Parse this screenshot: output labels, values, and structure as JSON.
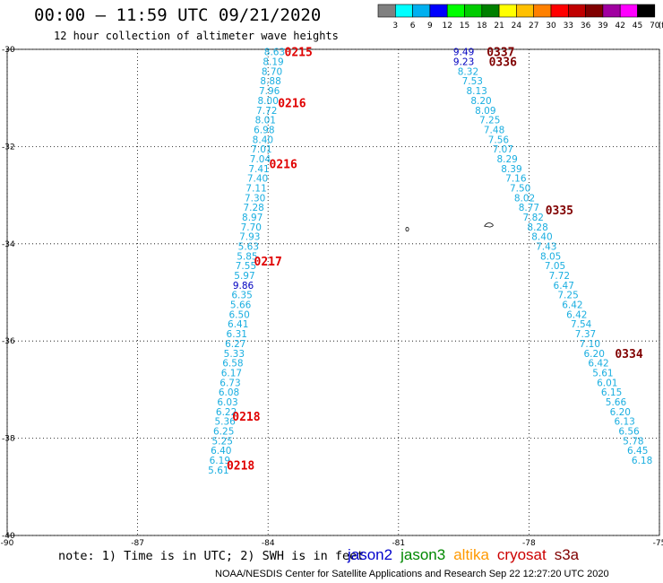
{
  "header": {
    "title": "00:00 – 11:59 UTC 09/21/2020",
    "subtitle": "12 hour collection of altimeter wave heights"
  },
  "colorbar": {
    "labels": [
      "3",
      "6",
      "9",
      "12",
      "15",
      "18",
      "21",
      "24",
      "27",
      "30",
      "33",
      "36",
      "39",
      "42",
      "45",
      "70"
    ],
    "colors": [
      "#808080",
      "#00ffff",
      "#00b0f0",
      "#0000ff",
      "#00ff00",
      "#00cc00",
      "#008000",
      "#ffff00",
      "#ffc000",
      "#ff8000",
      "#ff0000",
      "#c00000",
      "#800000",
      "#a000a0",
      "#ff00ff",
      "#000000"
    ],
    "unit": "(ft)"
  },
  "axes": {
    "lat_ticks": [
      -30,
      -32,
      -34,
      -36,
      -38,
      -40
    ],
    "lon_ticks": [
      -90,
      -87,
      -84,
      -81,
      -78,
      -75
    ],
    "lon_range": [
      -90,
      -75
    ],
    "lat_range": [
      -40,
      -30
    ]
  },
  "tracks": [
    {
      "points": [
        {
          "lat": -30.05,
          "lon": -83.85,
          "v": "8.63"
        },
        {
          "lat": -30.25,
          "lon": -83.88,
          "v": "8.19"
        },
        {
          "lat": -30.45,
          "lon": -83.91,
          "v": "8.70"
        },
        {
          "lat": -30.65,
          "lon": -83.94,
          "v": "8.88"
        },
        {
          "lat": -30.85,
          "lon": -83.97,
          "v": "7.96"
        },
        {
          "lat": -31.05,
          "lon": -84.0,
          "v": "8.00"
        },
        {
          "lat": -31.25,
          "lon": -84.03,
          "v": "7.72"
        },
        {
          "lat": -31.45,
          "lon": -84.06,
          "v": "8.01"
        },
        {
          "lat": -31.65,
          "lon": -84.09,
          "v": "6.98"
        },
        {
          "lat": -31.85,
          "lon": -84.12,
          "v": "8.40"
        },
        {
          "lat": -32.05,
          "lon": -84.15,
          "v": "7.01"
        },
        {
          "lat": -32.25,
          "lon": -84.18,
          "v": "7.04"
        },
        {
          "lat": -32.45,
          "lon": -84.21,
          "v": "7.41"
        },
        {
          "lat": -32.65,
          "lon": -84.24,
          "v": "7.40"
        },
        {
          "lat": -32.85,
          "lon": -84.27,
          "v": "7.11"
        },
        {
          "lat": -33.05,
          "lon": -84.3,
          "v": "7.30"
        },
        {
          "lat": -33.25,
          "lon": -84.33,
          "v": "7.28"
        },
        {
          "lat": -33.45,
          "lon": -84.36,
          "v": "8.97"
        },
        {
          "lat": -33.65,
          "lon": -84.39,
          "v": "7.70"
        },
        {
          "lat": -33.85,
          "lon": -84.42,
          "v": "7.93"
        },
        {
          "lat": -34.05,
          "lon": -84.45,
          "v": "5.63"
        },
        {
          "lat": -34.25,
          "lon": -84.48,
          "v": "5.85"
        },
        {
          "lat": -34.45,
          "lon": -84.51,
          "v": "7.55"
        },
        {
          "lat": -34.65,
          "lon": -84.54,
          "v": "5.97"
        },
        {
          "lat": -34.85,
          "lon": -84.57,
          "v": "9.86",
          "c": "#0000c0"
        },
        {
          "lat": -35.05,
          "lon": -84.6,
          "v": "6.35"
        },
        {
          "lat": -35.25,
          "lon": -84.63,
          "v": "5.66"
        },
        {
          "lat": -35.45,
          "lon": -84.66,
          "v": "6.50"
        },
        {
          "lat": -35.65,
          "lon": -84.69,
          "v": "6.41"
        },
        {
          "lat": -35.85,
          "lon": -84.72,
          "v": "6.31"
        },
        {
          "lat": -36.05,
          "lon": -84.75,
          "v": "6.27"
        },
        {
          "lat": -36.25,
          "lon": -84.78,
          "v": "5.33"
        },
        {
          "lat": -36.45,
          "lon": -84.81,
          "v": "6.58"
        },
        {
          "lat": -36.65,
          "lon": -84.84,
          "v": "6.17"
        },
        {
          "lat": -36.85,
          "lon": -84.87,
          "v": "6.73"
        },
        {
          "lat": -37.05,
          "lon": -84.9,
          "v": "6.08"
        },
        {
          "lat": -37.25,
          "lon": -84.93,
          "v": "6.03"
        },
        {
          "lat": -37.45,
          "lon": -84.96,
          "v": "6.22"
        },
        {
          "lat": -37.65,
          "lon": -84.99,
          "v": "5.36"
        },
        {
          "lat": -37.85,
          "lon": -85.02,
          "v": "6.25"
        },
        {
          "lat": -38.05,
          "lon": -85.05,
          "v": "5.25"
        },
        {
          "lat": -38.25,
          "lon": -85.08,
          "v": "6.40"
        },
        {
          "lat": -38.45,
          "lon": -85.11,
          "v": "6.19"
        },
        {
          "lat": -38.65,
          "lon": -85.14,
          "v": "5.61"
        }
      ],
      "time_labels": [
        {
          "lat": -30.05,
          "lon": -83.3,
          "t": "0215"
        },
        {
          "lat": -31.1,
          "lon": -83.45,
          "t": "0216"
        },
        {
          "lat": -32.35,
          "lon": -83.65,
          "t": "0216"
        },
        {
          "lat": -34.35,
          "lon": -84.0,
          "t": "0217"
        },
        {
          "lat": -37.55,
          "lon": -84.5,
          "t": "0218"
        },
        {
          "lat": -38.55,
          "lon": -84.63,
          "t": "0218"
        }
      ]
    },
    {
      "points": [
        {
          "lat": -30.05,
          "lon": -79.5,
          "v": "9.49",
          "c": "#0000c0"
        },
        {
          "lat": -30.25,
          "lon": -79.5,
          "v": "9.23",
          "c": "#0000c0"
        },
        {
          "lat": -30.45,
          "lon": -79.4,
          "v": "8.32"
        },
        {
          "lat": -30.65,
          "lon": -79.3,
          "v": "7.53"
        },
        {
          "lat": -30.85,
          "lon": -79.2,
          "v": "8.13"
        },
        {
          "lat": -31.05,
          "lon": -79.1,
          "v": "8.20"
        },
        {
          "lat": -31.25,
          "lon": -79.0,
          "v": "8.09"
        },
        {
          "lat": -31.45,
          "lon": -78.9,
          "v": "7.25"
        },
        {
          "lat": -31.65,
          "lon": -78.8,
          "v": "7.48"
        },
        {
          "lat": -31.85,
          "lon": -78.7,
          "v": "7.56"
        },
        {
          "lat": -32.05,
          "lon": -78.6,
          "v": "7.07"
        },
        {
          "lat": -32.25,
          "lon": -78.5,
          "v": "8.29"
        },
        {
          "lat": -32.45,
          "lon": -78.4,
          "v": "8.39"
        },
        {
          "lat": -32.65,
          "lon": -78.3,
          "v": "7.16"
        },
        {
          "lat": -32.85,
          "lon": -78.2,
          "v": "7.50"
        },
        {
          "lat": -33.05,
          "lon": -78.1,
          "v": "8.02"
        },
        {
          "lat": -33.25,
          "lon": -78.0,
          "v": "8.77"
        },
        {
          "lat": -33.45,
          "lon": -77.9,
          "v": "7.82"
        },
        {
          "lat": -33.65,
          "lon": -77.8,
          "v": "8.28"
        },
        {
          "lat": -33.85,
          "lon": -77.7,
          "v": "8.40"
        },
        {
          "lat": -34.05,
          "lon": -77.6,
          "v": "7.43"
        },
        {
          "lat": -34.25,
          "lon": -77.5,
          "v": "8.05"
        },
        {
          "lat": -34.45,
          "lon": -77.4,
          "v": "7.05"
        },
        {
          "lat": -34.65,
          "lon": -77.3,
          "v": "7.72"
        },
        {
          "lat": -34.85,
          "lon": -77.2,
          "v": "6.47"
        },
        {
          "lat": -35.05,
          "lon": -77.1,
          "v": "7.25"
        },
        {
          "lat": -35.25,
          "lon": -77.0,
          "v": "6.42"
        },
        {
          "lat": -35.45,
          "lon": -76.9,
          "v": "6.42"
        },
        {
          "lat": -35.65,
          "lon": -76.8,
          "v": "7.54"
        },
        {
          "lat": -35.85,
          "lon": -76.7,
          "v": "7.37"
        },
        {
          "lat": -36.05,
          "lon": -76.6,
          "v": "7.10"
        },
        {
          "lat": -36.25,
          "lon": -76.5,
          "v": "6.20"
        },
        {
          "lat": -36.45,
          "lon": -76.4,
          "v": "6.42"
        },
        {
          "lat": -36.65,
          "lon": -76.3,
          "v": "5.61"
        },
        {
          "lat": -36.85,
          "lon": -76.2,
          "v": "6.01"
        },
        {
          "lat": -37.05,
          "lon": -76.1,
          "v": "6.15"
        },
        {
          "lat": -37.25,
          "lon": -76.0,
          "v": "5.66"
        },
        {
          "lat": -37.45,
          "lon": -75.9,
          "v": "6.20"
        },
        {
          "lat": -37.65,
          "lon": -75.8,
          "v": "6.13"
        },
        {
          "lat": -37.85,
          "lon": -75.7,
          "v": "6.56"
        },
        {
          "lat": -38.05,
          "lon": -75.6,
          "v": "5.78"
        },
        {
          "lat": -38.25,
          "lon": -75.5,
          "v": "6.45"
        },
        {
          "lat": -38.45,
          "lon": -75.4,
          "v": "6.18"
        }
      ],
      "time_labels": [
        {
          "lat": -30.05,
          "lon": -78.65,
          "t": "0337"
        },
        {
          "lat": -30.25,
          "lon": -78.6,
          "t": "0336"
        },
        {
          "lat": -33.3,
          "lon": -77.3,
          "t": "0335"
        },
        {
          "lat": -36.25,
          "lon": -75.7,
          "t": "0334"
        }
      ]
    }
  ],
  "note": "note:  1) Time is in UTC;  2) SWH is in feet",
  "legend": [
    {
      "name": "jason2",
      "color": "#0000cc"
    },
    {
      "name": "jason3",
      "color": "#008800"
    },
    {
      "name": "altika",
      "color": "#ff9900"
    },
    {
      "name": "cryosat",
      "color": "#cc0000"
    },
    {
      "name": "s3a",
      "color": "#800000"
    }
  ],
  "footer": "NOAA/NESDIS Center for Satellite Applications and Research    Sep 22 12:27:20 UTC 2020"
}
